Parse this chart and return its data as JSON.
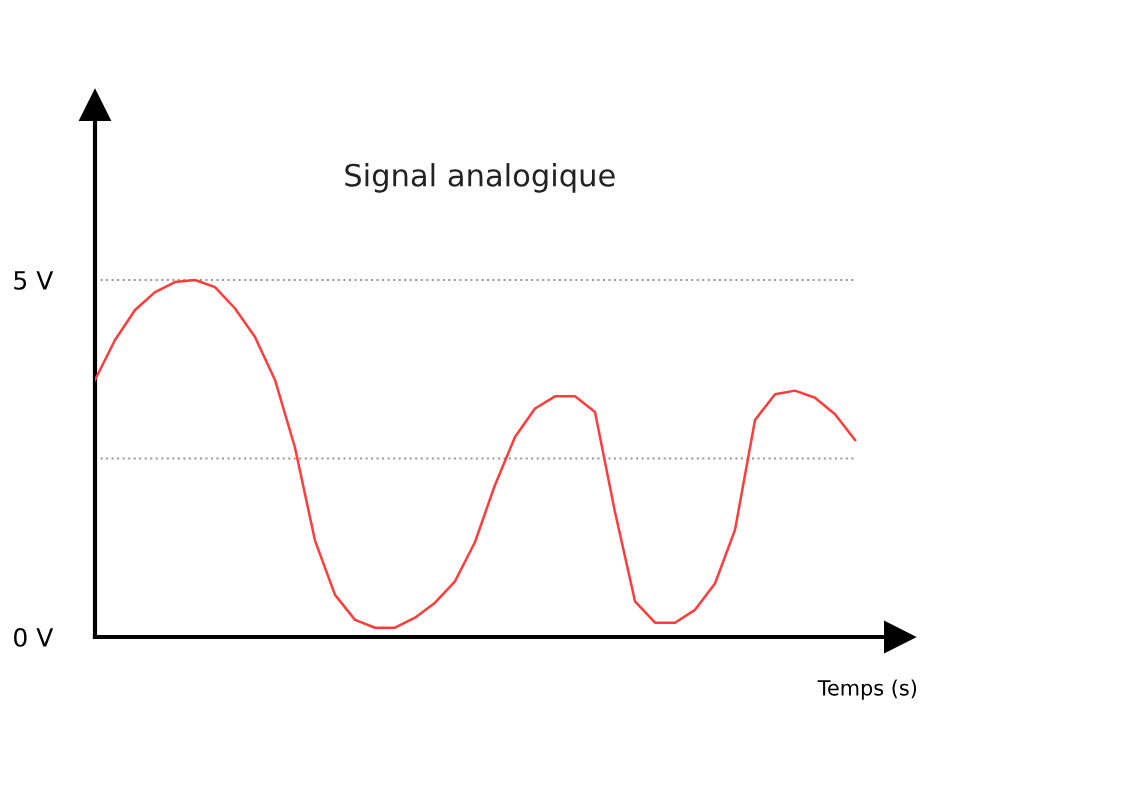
{
  "chart_data": {
    "type": "line",
    "title": "Signal analogique",
    "xlabel": "Temps (s)",
    "categories": [
      null,
      null,
      null,
      null,
      null,
      null,
      null,
      null,
      null,
      null,
      null,
      null,
      null,
      null,
      null,
      null,
      null,
      null,
      null,
      null,
      null,
      null,
      null,
      null,
      null,
      null,
      null,
      null,
      null,
      null,
      null,
      null,
      null,
      null,
      null,
      null,
      null,
      null,
      null
    ],
    "series": [
      {
        "color": "#ff3b3b",
        "values": [
          3.6,
          4.16,
          4.58,
          4.83,
          4.97,
          5.0,
          4.9,
          4.6,
          4.2,
          3.6,
          2.65,
          1.35,
          0.59,
          0.24,
          0.13,
          0.13,
          0.27,
          0.48,
          0.78,
          1.33,
          2.13,
          2.8,
          3.2,
          3.37,
          3.37,
          3.15,
          1.75,
          0.5,
          0.2,
          0.2,
          0.38,
          0.75,
          1.5,
          3.04,
          3.4,
          3.45,
          3.35,
          3.12,
          2.76
        ]
      }
    ],
    "ylim": [
      0,
      7.45
    ],
    "yticks": [
      {
        "value": 0,
        "label": "0 V"
      },
      {
        "value": 5,
        "label": "5 V"
      }
    ],
    "ref_lines": [
      {
        "axis": "y",
        "value": 5,
        "color": "#999999",
        "line_style": "dotted"
      },
      {
        "axis": "y",
        "value": 2.5,
        "color": "#999999",
        "line_style": "dotted"
      }
    ],
    "grid": false,
    "legend": false,
    "marker": "none",
    "line_style": "solid",
    "tick_labels": "y"
  }
}
